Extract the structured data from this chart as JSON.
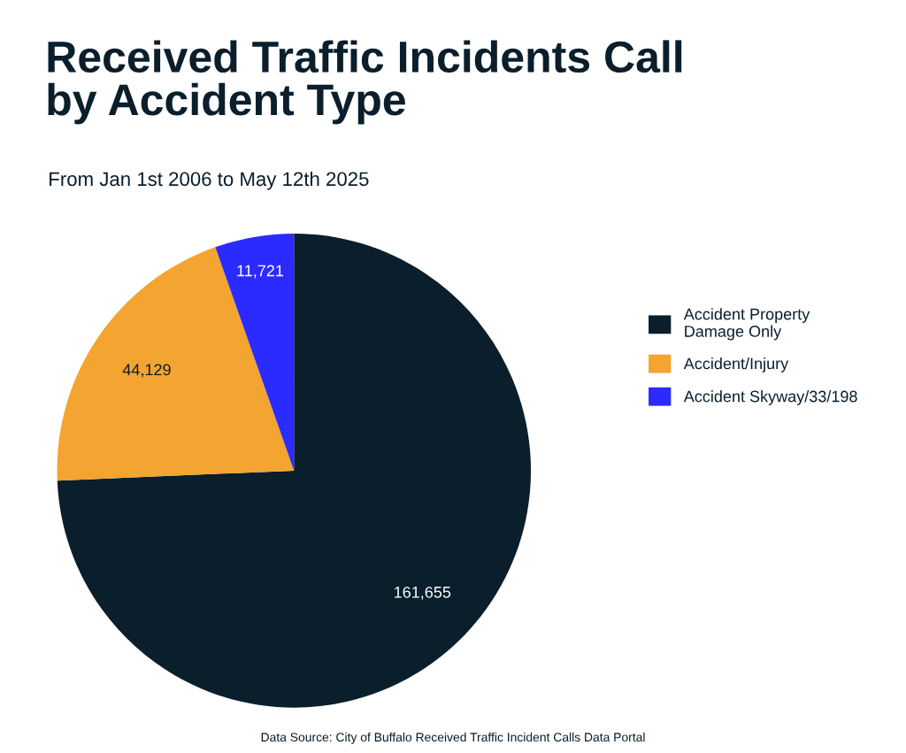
{
  "chart_data": {
    "type": "pie",
    "title": "Received Traffic Incidents Call\nby Accident Type",
    "subtitle": "From Jan 1st 2006 to May 12th 2025",
    "categories": [
      "Accident Property\nDamage Only",
      "Accident/Injury",
      "Accident Skyway/33/198"
    ],
    "values": [
      161655,
      44129,
      11721
    ],
    "value_labels": [
      "161,655",
      "44,129",
      "11,721"
    ],
    "colors": [
      "#0a1e2c",
      "#f4a430",
      "#2b2bff"
    ],
    "legend": "right",
    "annotations": [
      "Data Source: City of Buffalo Received Traffic Incident Calls Data Portal"
    ]
  }
}
